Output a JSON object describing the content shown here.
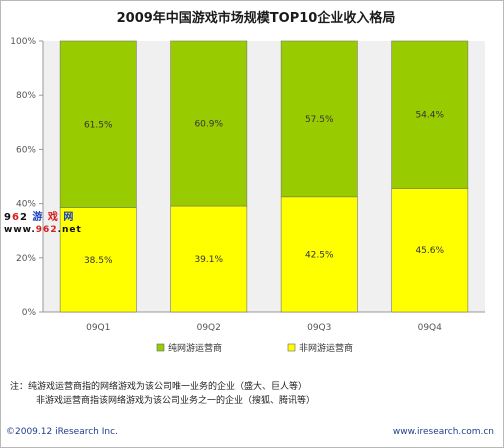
{
  "chart_data": {
    "type": "bar",
    "stacked": true,
    "percent": true,
    "title": "2009年中国游戏市场规模TOP10企业收入格局",
    "categories": [
      "09Q1",
      "09Q2",
      "09Q3",
      "09Q4"
    ],
    "series": [
      {
        "name": "非网游运营商",
        "values": [
          38.5,
          39.1,
          42.5,
          45.6
        ],
        "labels": [
          "38.5%",
          "39.1%",
          "42.5%",
          "45.6%"
        ],
        "color": "#ffff00"
      },
      {
        "name": "纯网游运营商",
        "values": [
          61.5,
          60.9,
          57.5,
          54.4
        ],
        "labels": [
          "61.5%",
          "60.9%",
          "57.5%",
          "54.4%"
        ],
        "color": "#99cc00"
      }
    ],
    "yticks": [
      "0%",
      "20%",
      "40%",
      "60%",
      "80%",
      "100%"
    ],
    "ylim": [
      0,
      100
    ],
    "grid": false,
    "legend_position": "bottom",
    "xlabel": "",
    "ylabel": ""
  },
  "notes": {
    "line1": "注：纯游戏运营商指的网络游戏为该公司唯一业务的企业（盛大、巨人等）",
    "line2": "非游戏运营商指该网络游戏为该公司业务之一的企业（搜狐、腾讯等）"
  },
  "footer": {
    "copyright": "©2009.12 iResearch Inc.",
    "website": "www.iresearch.com.cn"
  },
  "watermark": {
    "top_a": "9",
    "top_b": "6",
    "top_c": "2",
    "top_d": " 游",
    "top_e": " 戏",
    "top_f": " 网",
    "bottom_a": "www.",
    "bottom_b": "962",
    "bottom_c": ".net"
  }
}
